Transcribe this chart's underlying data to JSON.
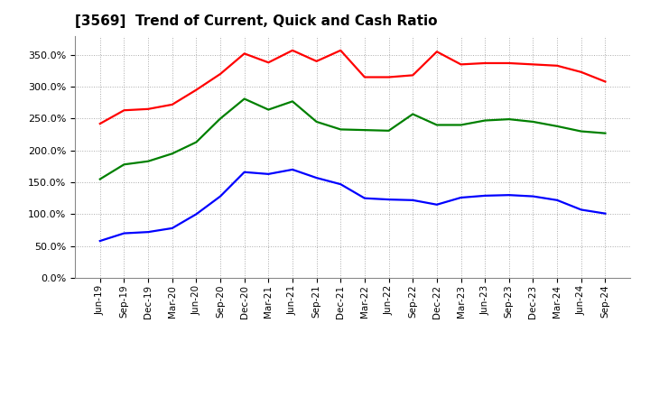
{
  "title": "[3569]  Trend of Current, Quick and Cash Ratio",
  "x_labels": [
    "Jun-19",
    "Sep-19",
    "Dec-19",
    "Mar-20",
    "Jun-20",
    "Sep-20",
    "Dec-20",
    "Mar-21",
    "Jun-21",
    "Sep-21",
    "Dec-21",
    "Mar-22",
    "Jun-22",
    "Sep-22",
    "Dec-22",
    "Mar-23",
    "Jun-23",
    "Sep-23",
    "Dec-23",
    "Mar-24",
    "Jun-24",
    "Sep-24"
  ],
  "current_ratio": [
    2.42,
    2.63,
    2.65,
    2.72,
    2.95,
    3.2,
    3.52,
    3.38,
    3.57,
    3.4,
    3.57,
    3.15,
    3.15,
    3.18,
    3.55,
    3.35,
    3.37,
    3.37,
    3.35,
    3.33,
    3.23,
    3.08
  ],
  "quick_ratio": [
    1.55,
    1.78,
    1.83,
    1.95,
    2.13,
    2.5,
    2.81,
    2.64,
    2.77,
    2.45,
    2.33,
    2.32,
    2.31,
    2.57,
    2.4,
    2.4,
    2.47,
    2.49,
    2.45,
    2.38,
    2.3,
    2.27
  ],
  "cash_ratio": [
    0.58,
    0.7,
    0.72,
    0.78,
    1.0,
    1.28,
    1.66,
    1.63,
    1.7,
    1.57,
    1.47,
    1.25,
    1.23,
    1.22,
    1.15,
    1.26,
    1.29,
    1.3,
    1.28,
    1.22,
    1.07,
    1.01
  ],
  "current_color": "#FF0000",
  "quick_color": "#008000",
  "cash_color": "#0000FF",
  "ylim": [
    0.0,
    3.8
  ],
  "yticks": [
    0.0,
    0.5,
    1.0,
    1.5,
    2.0,
    2.5,
    3.0,
    3.5
  ],
  "background_color": "#FFFFFF",
  "plot_bg_color": "#FFFFFF",
  "grid_color": "#AAAAAA",
  "line_width": 1.6
}
